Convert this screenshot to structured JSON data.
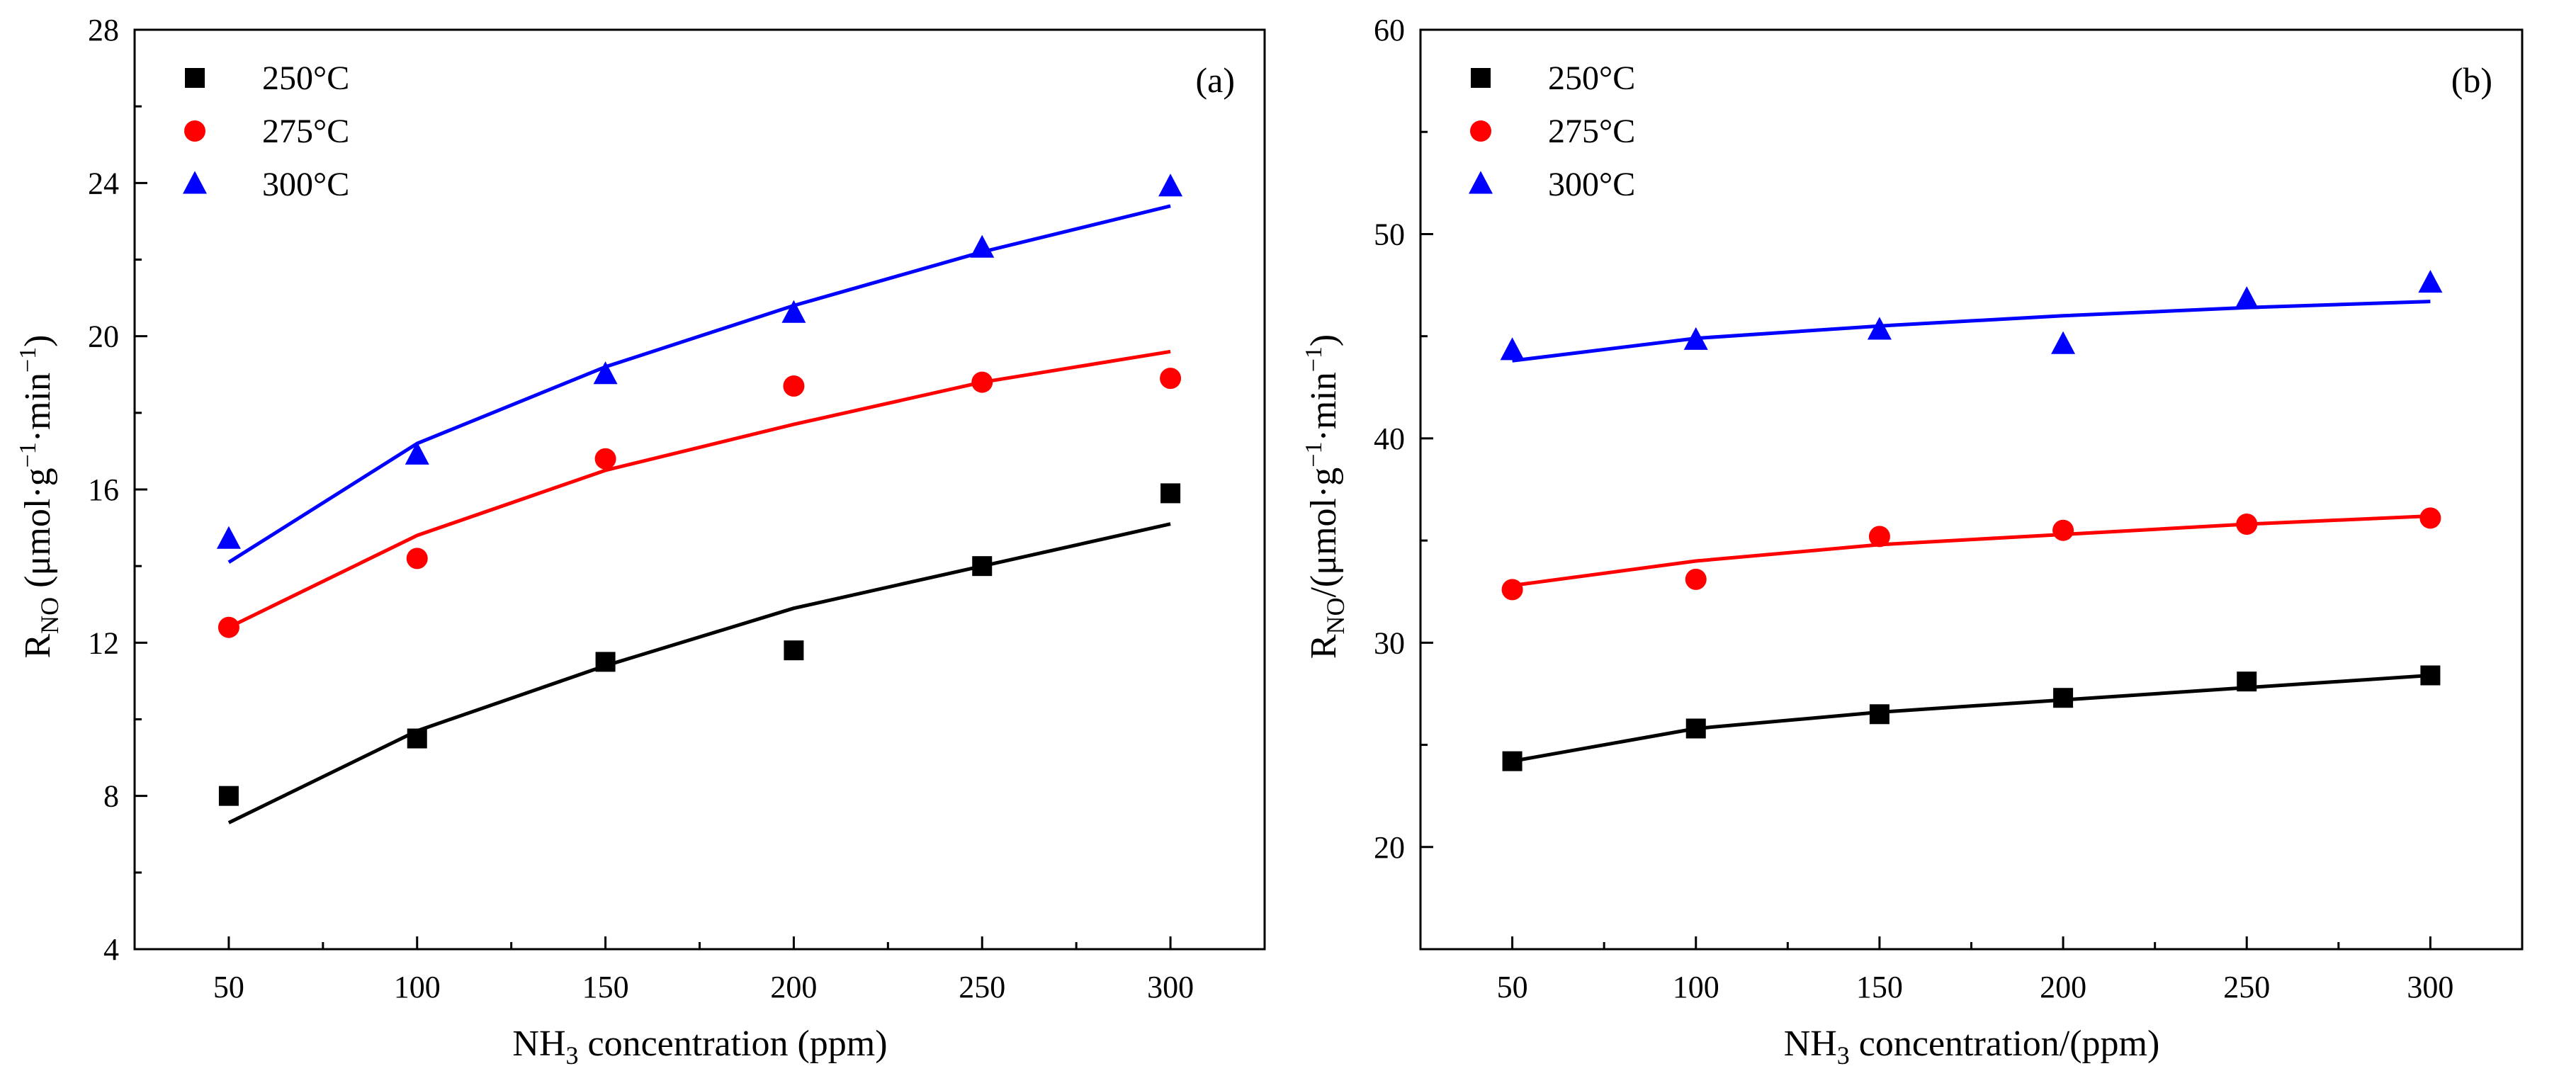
{
  "chart_data": [
    {
      "type": "scatter",
      "panel_label": "(a)",
      "x": [
        50,
        100,
        150,
        200,
        250,
        300
      ],
      "xticks": [
        "50",
        "100",
        "150",
        "200",
        "250",
        "300"
      ],
      "xlim": [
        25,
        325
      ],
      "ylim": [
        4,
        28
      ],
      "yticks": [
        "4",
        "8",
        "12",
        "16",
        "20",
        "24",
        "28"
      ],
      "xlabel": {
        "pre": "NH",
        "sub": "3",
        "post": " concentration (ppm)"
      },
      "ylabel": {
        "r": "R",
        "r_sub": "NO",
        "open": " (μmol·g",
        "exp1": "−1",
        "mid": "·min",
        "exp2": "−1",
        "close": ")"
      },
      "legend_position": "top-left",
      "series": [
        {
          "name": "250°C",
          "marker": "square",
          "color": "#000000",
          "values": [
            8.0,
            9.5,
            11.5,
            11.8,
            14.0,
            15.9
          ],
          "fit": [
            7.3,
            9.7,
            11.4,
            12.9,
            14.0,
            15.1
          ]
        },
        {
          "name": "275°C",
          "marker": "circle",
          "color": "#ff0000",
          "values": [
            12.4,
            14.2,
            16.8,
            18.7,
            18.8,
            18.9
          ],
          "fit": [
            12.4,
            14.8,
            16.5,
            17.7,
            18.8,
            19.6
          ]
        },
        {
          "name": "300°C",
          "marker": "triangle",
          "color": "#0000ff",
          "values": [
            14.7,
            16.9,
            19.0,
            20.6,
            22.3,
            23.9
          ],
          "fit": [
            14.1,
            17.2,
            19.2,
            20.8,
            22.2,
            23.4
          ]
        }
      ]
    },
    {
      "type": "scatter",
      "panel_label": "(b)",
      "x": [
        50,
        100,
        150,
        200,
        250,
        300
      ],
      "xticks": [
        "50",
        "100",
        "150",
        "200",
        "250",
        "300"
      ],
      "xlim": [
        25,
        325
      ],
      "ylim": [
        15,
        60
      ],
      "yticks": [
        "20",
        "30",
        "40",
        "50",
        "60"
      ],
      "xlabel": {
        "pre": "NH",
        "sub": "3",
        "post": " concentration/(ppm)"
      },
      "ylabel": {
        "r": "R",
        "r_sub": "NO",
        "open": "/(μmol·g",
        "exp1": "−1",
        "mid": "·min",
        "exp2": "−1",
        "close": ")"
      },
      "legend_position": "top-left",
      "series": [
        {
          "name": "250°C",
          "marker": "square",
          "color": "#000000",
          "values": [
            24.2,
            25.8,
            26.5,
            27.3,
            28.1,
            28.4
          ],
          "fit": [
            24.2,
            25.8,
            26.6,
            27.2,
            27.8,
            28.4
          ]
        },
        {
          "name": "275°C",
          "marker": "circle",
          "color": "#ff0000",
          "values": [
            32.6,
            33.1,
            35.2,
            35.5,
            35.8,
            36.1
          ],
          "fit": [
            32.8,
            34.0,
            34.8,
            35.3,
            35.8,
            36.2
          ]
        },
        {
          "name": "300°C",
          "marker": "triangle",
          "color": "#0000ff",
          "values": [
            44.3,
            44.8,
            45.3,
            44.6,
            46.8,
            47.6
          ],
          "fit": [
            43.8,
            44.9,
            45.5,
            46.0,
            46.4,
            46.7
          ]
        }
      ]
    }
  ]
}
